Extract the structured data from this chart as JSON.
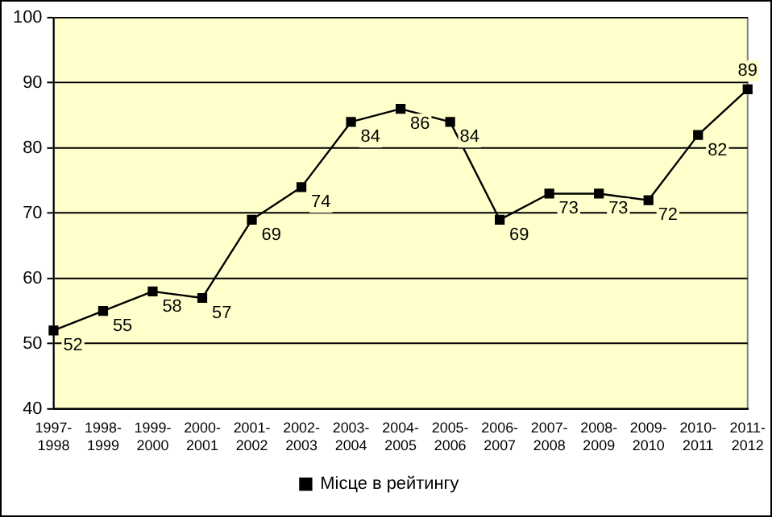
{
  "chart_data": {
    "type": "line",
    "categories": [
      "1997-1998",
      "1998-1999",
      "1999-2000",
      "2000-2001",
      "2001-2002",
      "2002-2003",
      "2003-2004",
      "2004-2005",
      "2005-2006",
      "2006-2007",
      "2007-2008",
      "2008-2009",
      "2009-2010",
      "2010-2011",
      "2011-2012"
    ],
    "series": [
      {
        "name": "Місце в рейтингу",
        "color": "#000000",
        "values": [
          52,
          55,
          58,
          57,
          69,
          74,
          84,
          86,
          84,
          69,
          73,
          73,
          72,
          82,
          89
        ]
      }
    ],
    "ylim": [
      40,
      100
    ],
    "yticks": [
      40,
      50,
      60,
      70,
      80,
      90,
      100
    ],
    "grid": "y",
    "legend": "bottom",
    "marker": "square",
    "line_style": "solid",
    "data_labels": true
  }
}
